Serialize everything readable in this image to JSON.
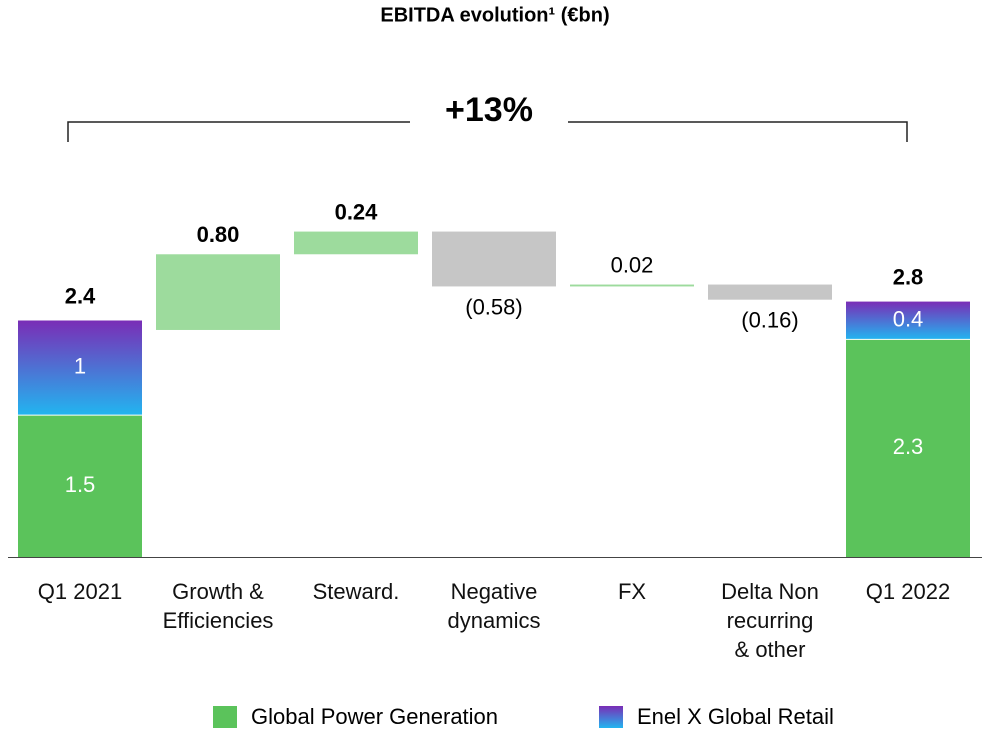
{
  "chart_data": {
    "type": "waterfall",
    "title": "EBITDA evolution¹ (€bn)",
    "annotation": "+13%",
    "categories": [
      "Q1 2021",
      "Growth &\nEfficiencies",
      "Steward.",
      "Negative\ndynamics",
      "FX",
      "Delta Non\nrecurring\n& other",
      "Q1 2022"
    ],
    "series": [
      {
        "name": "Global Power Generation",
        "color": "#5bc35b",
        "values": [
          1.5,
          null,
          null,
          null,
          null,
          null,
          2.3
        ]
      },
      {
        "name": "Enel X Global Retail",
        "color": [
          "#7a2db6",
          "#22b5f0"
        ],
        "values": [
          1.0,
          null,
          null,
          null,
          null,
          null,
          0.4
        ]
      }
    ],
    "totals": [
      2.4,
      null,
      null,
      null,
      null,
      null,
      2.8
    ],
    "values": [
      null,
      0.8,
      0.24,
      -0.58,
      0.02,
      -0.16,
      null
    ],
    "value_labels": [
      null,
      "0.80",
      "0.24",
      "(0.58)",
      "0.02",
      "(0.16)",
      null
    ],
    "value_label_bold": [
      false,
      true,
      true,
      false,
      false,
      false,
      false
    ],
    "increase_color": "#9ddb9d",
    "decrease_color": "#c6c6c6",
    "ylim": [
      0,
      4
    ]
  }
}
